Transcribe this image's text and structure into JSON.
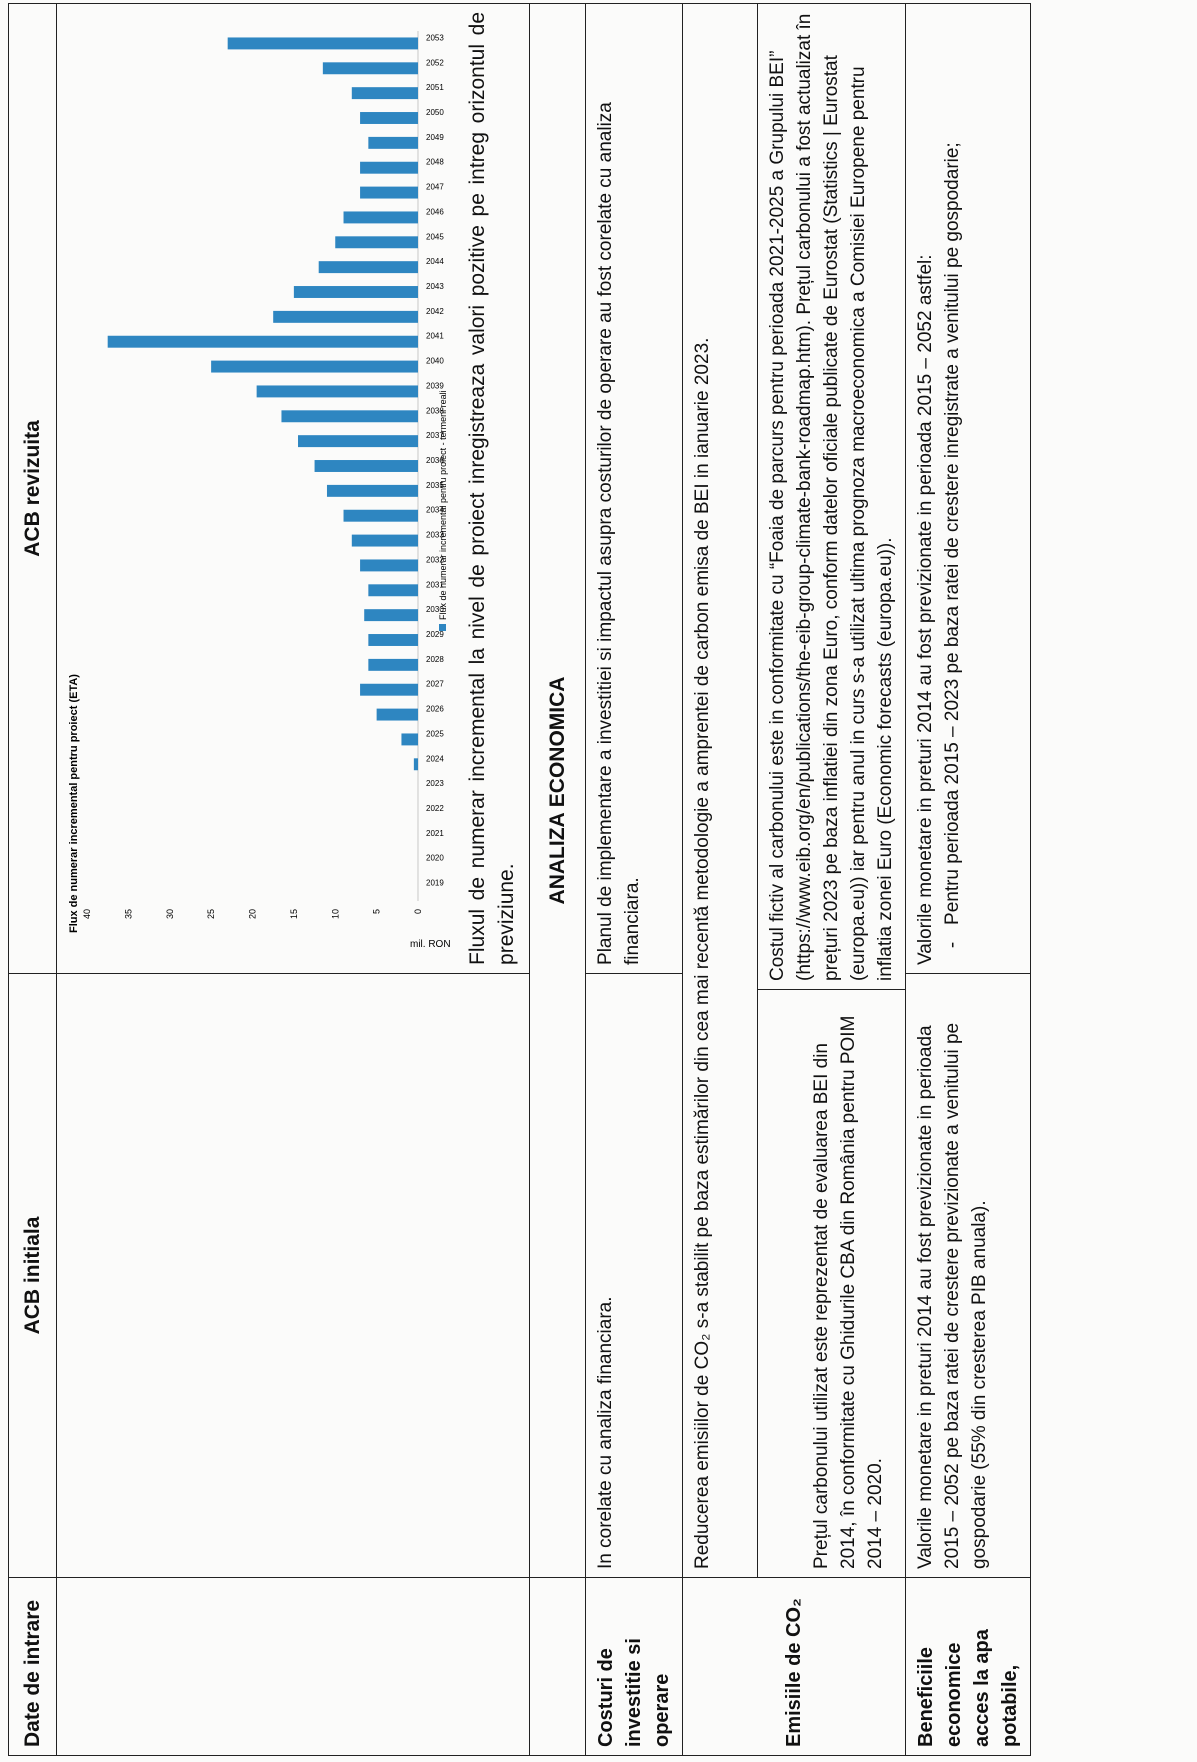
{
  "headers": {
    "col1": "Date de intrare",
    "col2": "ACB initiala",
    "col3": "ACB revizuita"
  },
  "chart_data": {
    "type": "bar",
    "title": "Flux de numerar incremental pentru proiect (ETA)",
    "ylabel": "mil. RON",
    "ylim": [
      0,
      40
    ],
    "yticks": [
      0,
      5,
      10,
      15,
      20,
      25,
      30,
      35,
      40
    ],
    "legend": "Flux de numerar incremental pentru proiect - termeni reali",
    "legend_placement": "bottom",
    "categories": [
      "2019",
      "2020",
      "2021",
      "2022",
      "2023",
      "2024",
      "2025",
      "2026",
      "2027",
      "2028",
      "2029",
      "2030",
      "2031",
      "2032",
      "2033",
      "2034",
      "2035",
      "2036",
      "2037",
      "2038",
      "2039",
      "2040",
      "2041",
      "2042",
      "2043",
      "2044",
      "2045",
      "2046",
      "2047",
      "2048",
      "2049",
      "2050",
      "2051",
      "2052",
      "2053"
    ],
    "values": [
      0,
      0,
      0,
      0,
      0,
      0.5,
      2,
      5,
      7,
      6,
      6,
      6.5,
      6,
      7,
      8,
      9,
      11,
      12.5,
      14.5,
      16.5,
      19.5,
      25,
      37.5,
      17.5,
      15,
      12,
      10,
      9,
      7,
      7,
      6,
      7,
      8,
      11.5,
      23
    ],
    "bar_color": "#2e86c1"
  },
  "rows": {
    "cashflow_text": "Fluxul de numerar incremental la nivel de proiect inregistreaza valori pozitive pe intreg orizontul de previziune.",
    "section_title": "ANALIZA ECONOMICA",
    "costuri": {
      "label": "Costuri de investitie si operare",
      "initial": "In corelate cu analiza financiara.",
      "revised": "Planul de implementare a investitiei si impactul asupra costurilor de operare au fost corelate cu analiza financiara."
    },
    "emisii": {
      "label": "Emisiile de CO₂",
      "merged": "Reducerea emisiilor de CO₂ s-a stabilit pe baza estimărilor din cea mai recentă metodologie a amprentei de carbon emisa de BEI in ianuarie 2023.",
      "initial": "Prețul carbonului utilizat este reprezentat de evaluarea BEI din 2014, în conformitate cu Ghidurile CBA din România pentru POIM 2014 – 2020.",
      "revised": "Costul fictiv al carbonului este in conformitate cu “Foaia de parcurs pentru perioada 2021-2025 a Grupului BEI” (https://www.eib.org/en/publications/the-eib-group-climate-bank-roadmap.htm). Prețul carbonului a fost actualizat în prețuri 2023 pe baza inflatiei din zona Euro, conform datelor oficiale publicate de Eurostat (Statistics | Eurostat (europa.eu)) iar pentru anul in curs s-a utilizat ultima prognoza macroeconomica a Comisiei Europene pentru inflatia zonei Euro (Economic forecasts (europa.eu))."
    },
    "beneficii": {
      "label": "Beneficiile economice acces la apa potabile,",
      "initial": "Valorile monetare in preturi 2014 au fost previzionate in perioada 2015 – 2052 pe baza ratei de crestere previzionate a venitului pe gospodarie (55% din cresterea PIB anuala).",
      "revised_intro": "Valorile monetare in preturi 2014 au fost previzionate in perioada 2015 – 2052 astfel:",
      "revised_bullet_dash": "-",
      "revised_bullet": "Pentru perioada 2015 – 2023 pe baza ratei de crestere inregistrate a venitului pe gospodarie;"
    }
  }
}
